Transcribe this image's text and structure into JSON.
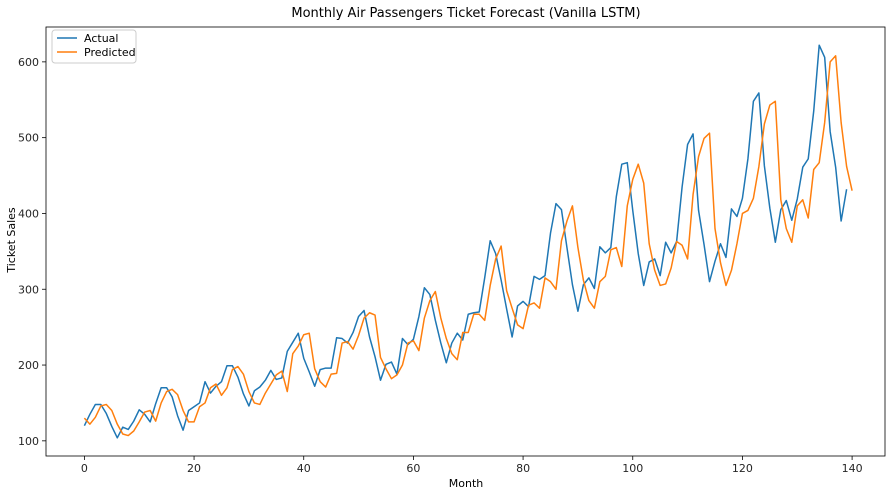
{
  "chart_data": {
    "type": "line",
    "title": "Monthly Air Passengers Ticket Forecast (Vanilla LSTM)",
    "xlabel": "Month",
    "ylabel": "Ticket Sales",
    "xlim": [
      -7,
      146
    ],
    "ylim": [
      80,
      646
    ],
    "xticks": [
      0,
      20,
      40,
      60,
      80,
      100,
      120,
      140
    ],
    "yticks": [
      100,
      200,
      300,
      400,
      500,
      600
    ],
    "grid": false,
    "legend_position": "upper-left",
    "series": [
      {
        "name": "Actual",
        "color": "#1f77b4",
        "values": [
          120,
          135,
          148,
          148,
          136,
          119,
          104,
          118,
          115,
          126,
          141,
          135,
          125,
          149,
          170,
          170,
          158,
          133,
          114,
          140,
          145,
          150,
          178,
          163,
          172,
          178,
          199,
          199,
          184,
          162,
          146,
          166,
          171,
          180,
          193,
          181,
          183,
          218,
          230,
          242,
          209,
          191,
          172,
          194,
          196,
          196,
          236,
          235,
          229,
          243,
          264,
          272,
          237,
          211,
          180,
          201,
          204,
          188,
          235,
          227,
          234,
          264,
          302,
          293,
          259,
          229,
          203,
          229,
          242,
          233,
          267,
          269,
          270,
          315,
          364,
          347,
          312,
          274,
          237,
          278,
          284,
          277,
          317,
          313,
          318,
          374,
          413,
          405,
          355,
          306,
          271,
          306,
          315,
          301,
          356,
          348,
          355,
          422,
          465,
          467,
          404,
          347,
          305,
          336,
          340,
          318,
          362,
          348,
          363,
          435,
          491,
          505,
          404,
          359,
          310,
          337,
          360,
          342,
          406,
          396,
          420,
          472,
          548,
          559,
          463,
          407,
          362,
          405,
          417,
          391,
          419,
          461,
          472,
          535,
          622,
          606,
          508,
          461,
          390,
          432
        ]
      },
      {
        "name": "Predicted",
        "color": "#ff7f0e",
        "values": [
          130,
          122,
          131,
          146,
          148,
          140,
          122,
          109,
          107,
          113,
          125,
          138,
          140,
          126,
          150,
          165,
          168,
          161,
          140,
          125,
          125,
          145,
          150,
          170,
          175,
          160,
          170,
          194,
          198,
          188,
          165,
          150,
          148,
          163,
          175,
          187,
          192,
          165,
          215,
          225,
          240,
          242,
          195,
          178,
          171,
          188,
          189,
          229,
          231,
          221,
          239,
          262,
          269,
          266,
          210,
          195,
          182,
          187,
          200,
          229,
          232,
          219,
          262,
          285,
          297,
          262,
          235,
          215,
          207,
          243,
          243,
          267,
          267,
          259,
          305,
          340,
          357,
          298,
          275,
          253,
          248,
          279,
          282,
          275,
          315,
          310,
          300,
          364,
          390,
          410,
          355,
          312,
          285,
          275,
          310,
          317,
          352,
          355,
          330,
          410,
          445,
          465,
          440,
          360,
          325,
          305,
          307,
          328,
          363,
          358,
          340,
          425,
          475,
          499,
          506,
          380,
          335,
          305,
          325,
          360,
          400,
          404,
          420,
          462,
          518,
          543,
          548,
          418,
          380,
          362,
          410,
          418,
          394,
          458,
          467,
          520,
          600,
          608,
          520,
          462,
          430
        ]
      }
    ]
  }
}
